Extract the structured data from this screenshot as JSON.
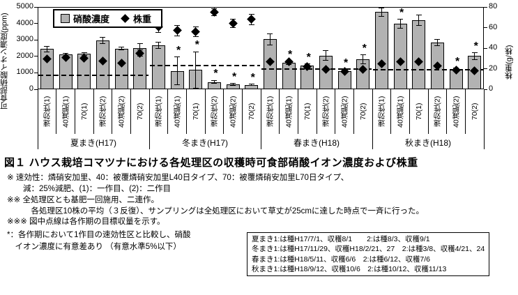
{
  "figure": {
    "caption": "図１ ハウス栽培コマツナにおける各処理区の収穫時可食部硝酸イオン濃度および株重"
  },
  "chart_data": {
    "type": "bar",
    "overlay": "scatter-diamond",
    "title": "ハウス栽培コマツナにおける各処理区の収穫時可食部硝酸イオン濃度および株重",
    "left_axis": {
      "label": "可食部硝酸イオン濃度(ppm)",
      "min": 0,
      "max": 5000,
      "ticks": [
        0,
        1000,
        2000,
        3000,
        4000,
        5000
      ]
    },
    "right_axis": {
      "label": "株重(g/株)",
      "min": 0,
      "max": 80,
      "ticks": [
        0,
        20,
        40,
        60,
        80
      ]
    },
    "legend": [
      {
        "label": "硝酸濃度",
        "marker": "bar"
      },
      {
        "label": "株重",
        "marker": "diamond"
      }
    ],
    "colors": {
      "bar_fill": "#b2b2b2",
      "bar_border": "#000000",
      "diamond": "#000000",
      "dashed_line": "#000000"
    },
    "treatments": [
      "速効性(1)",
      "40減肥(1)",
      "70(1)",
      "速効性(2)",
      "40減肥(2)",
      "70(2)"
    ],
    "groups": [
      {
        "name": "夏まき(H17)",
        "target_line_ppm": 850,
        "target_line_g": 14,
        "bars": [
          {
            "label": "速効性(1)",
            "nitrate_ppm": 2450,
            "nitrate_err": 170,
            "weight_g": 29.5,
            "weight_err": 0,
            "significant": false
          },
          {
            "label": "40減肥(1)",
            "nitrate_ppm": 2100,
            "nitrate_err": 90,
            "weight_g": 31,
            "weight_err": 0,
            "significant": false
          },
          {
            "label": "70(1)",
            "nitrate_ppm": 2150,
            "nitrate_err": 90,
            "weight_g": 30.5,
            "weight_err": 0,
            "significant": false
          },
          {
            "label": "速効性(2)",
            "nitrate_ppm": 2950,
            "nitrate_err": 190,
            "weight_g": 27.5,
            "weight_err": 0,
            "significant": false
          },
          {
            "label": "40減肥(2)",
            "nitrate_ppm": 2470,
            "nitrate_err": 80,
            "weight_g": 25.5,
            "weight_err": 0,
            "significant": false
          },
          {
            "label": "70(2)",
            "nitrate_ppm": 2520,
            "nitrate_err": 240,
            "weight_g": 35,
            "weight_err": 3,
            "significant": false
          }
        ]
      },
      {
        "name": "冬まき(H17)",
        "target_line_ppm": 1440,
        "target_line_g": 23,
        "bars": [
          {
            "label": "速効性(1)",
            "nitrate_ppm": 2650,
            "nitrate_err": 190,
            "weight_g": 61,
            "weight_err": 6,
            "significant": false
          },
          {
            "label": "40減肥(1)",
            "nitrate_ppm": 1110,
            "nitrate_err": 850,
            "weight_g": 57,
            "weight_err": 5,
            "significant": true
          },
          {
            "label": "70(1)",
            "nitrate_ppm": 1170,
            "nitrate_err": 1100,
            "weight_g": 56,
            "weight_err": 5,
            "significant": true
          },
          {
            "label": "速効性(2)",
            "nitrate_ppm": 440,
            "nitrate_err": 100,
            "weight_g": 75,
            "weight_err": 3.5,
            "significant": true
          },
          {
            "label": "40減肥(2)",
            "nitrate_ppm": 300,
            "nitrate_err": 60,
            "weight_g": 64,
            "weight_err": 4,
            "significant": true
          },
          {
            "label": "70(2)",
            "nitrate_ppm": 270,
            "nitrate_err": 40,
            "weight_g": 68,
            "weight_err": 5,
            "significant": true
          }
        ]
      },
      {
        "name": "春まき(H18)",
        "target_line_ppm": 1240,
        "target_line_g": 20,
        "bars": [
          {
            "label": "速効性(1)",
            "nitrate_ppm": 3030,
            "nitrate_err": 350,
            "weight_g": 26.5,
            "weight_err": 0,
            "significant": false
          },
          {
            "label": "40減肥(1)",
            "nitrate_ppm": 1590,
            "nitrate_err": 100,
            "weight_g": 27,
            "weight_err": 0,
            "significant": true
          },
          {
            "label": "70(1)",
            "nitrate_ppm": 1450,
            "nitrate_err": 80,
            "weight_g": 22,
            "weight_err": 0,
            "significant": true
          },
          {
            "label": "速効性(2)",
            "nitrate_ppm": 2050,
            "nitrate_err": 300,
            "weight_g": 19.5,
            "weight_err": 0,
            "significant": false
          },
          {
            "label": "40減肥(2)",
            "nitrate_ppm": 1120,
            "nitrate_err": 80,
            "weight_g": 17.5,
            "weight_err": 0,
            "significant": true
          },
          {
            "label": "70(2)",
            "nitrate_ppm": 1810,
            "nitrate_err": 270,
            "weight_g": 19.5,
            "weight_err": 0,
            "significant": true
          }
        ]
      },
      {
        "name": "秋まき(H18)",
        "target_line_ppm": 1200,
        "target_line_g": 19,
        "bars": [
          {
            "label": "速効性(1)",
            "nitrate_ppm": 4690,
            "nitrate_err": 250,
            "weight_g": 25,
            "weight_err": 0,
            "significant": false
          },
          {
            "label": "40減肥(1)",
            "nitrate_ppm": 3980,
            "nitrate_err": 260,
            "weight_g": 26.5,
            "weight_err": 0,
            "significant": true
          },
          {
            "label": "70(1)",
            "nitrate_ppm": 4190,
            "nitrate_err": 320,
            "weight_g": 26.5,
            "weight_err": 0,
            "significant": false
          },
          {
            "label": "速効性(2)",
            "nitrate_ppm": 2830,
            "nitrate_err": 200,
            "weight_g": 22.5,
            "weight_err": 0,
            "significant": false
          },
          {
            "label": "40減肥(2)",
            "nitrate_ppm": 1230,
            "nitrate_err": 60,
            "weight_g": 18.5,
            "weight_err": 0,
            "significant": true
          },
          {
            "label": "70(2)",
            "nitrate_ppm": 2020,
            "nitrate_err": 200,
            "weight_g": 18,
            "weight_err": 0,
            "significant": true
          }
        ]
      }
    ]
  },
  "notes": [
    "※ 速効性：燐硝安加里、40：被覆燐硝安加里L40日タイプ、70：被覆燐硝安加里L70日タイプ、",
    "　　減：25%減肥、(1)：一作目、(2)：二作目",
    "※※ 全処理区とも基肥一回施用、二連作。",
    "　　　各処理区10株の平均（３反復）、サンプリングは全処理区において草丈が25cmに達した時点で一斉に行った。",
    "※※※ 図中点線は各作期の目標収量を示す。"
  ],
  "sig_note": [
    "*：各作期において1作目の速効性区と比較し、硝酸",
    "　イオン濃度に有意差あり （有意水準5%以下）"
  ],
  "schedule_box": {
    "lines": [
      "夏まき1:は種H17/7/1、収穫8/1　　2:は種8/3、収穫9/1",
      "冬まき1:は種H17/11/29、収穫H18/2/21、27　2:は種3/8、収穫4/21、24",
      "春まき1:は種H18/5/11、収穫6/6　2:は種6/12、収穫7/6",
      "秋まき1:は種H18/9/12、収穫10/6　2:は種10/12、収穫11/13"
    ]
  }
}
